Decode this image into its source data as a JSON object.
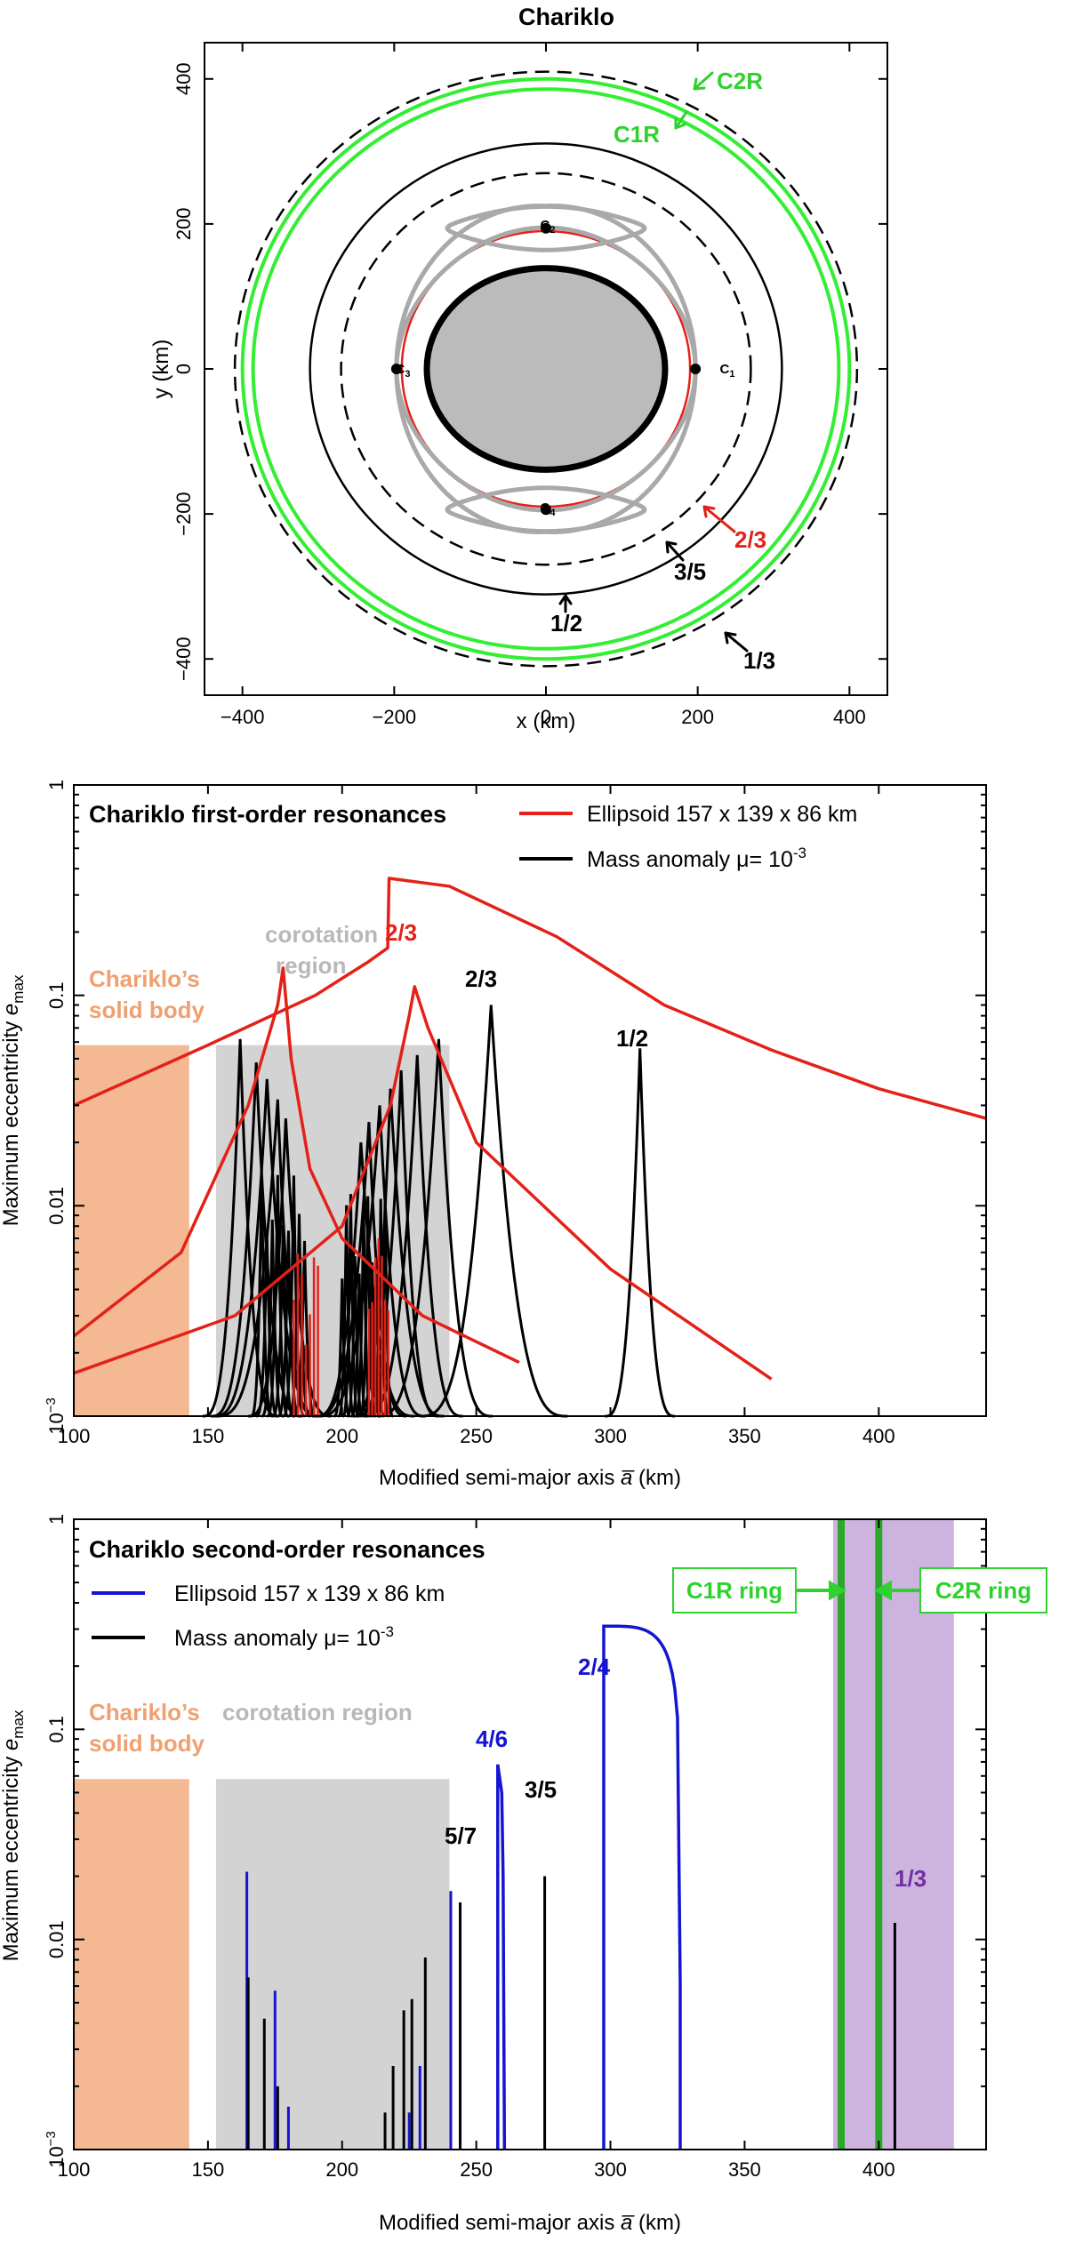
{
  "chart_data": [
    {
      "type": "scatter",
      "title": "Chariklo",
      "xlabel": "x (km)",
      "ylabel": "y (km)",
      "xlim": [
        -450,
        450
      ],
      "ylim": [
        -450,
        450
      ],
      "xticks": [
        "−400",
        "−200",
        "0",
        "200",
        "400"
      ],
      "yticks": [
        "−400",
        "−200",
        "0",
        "200",
        "400"
      ],
      "body": {
        "semi_axis_x": 157,
        "semi_axis_y": 139
      },
      "equilibrium_points": [
        {
          "name": "C1",
          "x": 197,
          "y": 0
        },
        {
          "name": "C2",
          "x": 0,
          "y": 194
        },
        {
          "name": "C3",
          "x": -197,
          "y": 0
        },
        {
          "name": "C4",
          "x": 0,
          "y": -194
        }
      ],
      "circles": [
        {
          "name": "corotation",
          "r": 190,
          "style": "red"
        },
        {
          "name": "3/5",
          "r": 270,
          "style": "dashed"
        },
        {
          "name": "1/2",
          "r": 311,
          "style": "solid"
        },
        {
          "name": "C1R",
          "r": 386,
          "style": "green"
        },
        {
          "name": "C2R",
          "r": 400,
          "style": "green"
        },
        {
          "name": "1/3",
          "r": 410,
          "style": "dashed"
        }
      ],
      "labels": {
        "c2r": "C2R",
        "c1r": "C1R",
        "r23": "2/3",
        "r35": "3/5",
        "r12": "1/2",
        "r13": "1/3"
      }
    },
    {
      "type": "line",
      "title": "Chariklo first-order resonances",
      "xlabel": "Modified semi-major axis a̅ (km)",
      "ylabel": "Maximum eccentricity e_max",
      "xlim": [
        100,
        440
      ],
      "ylim": [
        0.001,
        1
      ],
      "yscale": "log",
      "xticks": [
        100,
        150,
        200,
        250,
        300,
        350,
        400
      ],
      "legend": [
        {
          "label": "Ellipsoid 157 x 139 x 86 km",
          "color": "#e32118"
        },
        {
          "label": "Mass anomaly μ= 10⁻³",
          "color": "#000000"
        }
      ],
      "regions": [
        {
          "label": "Chariklo's solid body",
          "x": [
            100,
            143
          ],
          "top": 0.058,
          "color": "#f4b893"
        },
        {
          "label": "corotation region",
          "x": [
            153,
            240
          ],
          "top": 0.058,
          "color": "#d3d3d3"
        }
      ],
      "peak_labels": [
        {
          "text": "2/3",
          "a": 220,
          "e": 0.36,
          "color": "#e32118"
        },
        {
          "text": "2/3",
          "a": 256,
          "e": 0.09,
          "color": "#000000"
        },
        {
          "text": "1/2",
          "a": 311,
          "e": 0.056,
          "color": "#000000"
        }
      ],
      "series": [
        {
          "name": "Ellipsoid 2/3",
          "color": "#e32118",
          "a": [
            100,
            150,
            190,
            210,
            217,
            217.5,
            240,
            280,
            320,
            360,
            400,
            440
          ],
          "e": [
            0.03,
            0.058,
            0.1,
            0.145,
            0.168,
            0.36,
            0.33,
            0.19,
            0.09,
            0.055,
            0.036,
            0.026
          ]
        },
        {
          "name": "Ellipsoid 3/4",
          "color": "#e32118",
          "a": [
            100,
            140,
            165,
            176,
            178,
            181,
            188,
            200,
            230,
            266
          ],
          "e": [
            0.0024,
            0.006,
            0.03,
            0.09,
            0.135,
            0.05,
            0.015,
            0.007,
            0.003,
            0.0018
          ]
        },
        {
          "name": "Ellipsoid 4/3",
          "color": "#e32118",
          "a": [
            100,
            160,
            200,
            218,
            225,
            227,
            232,
            250,
            300,
            360
          ],
          "e": [
            0.0016,
            0.003,
            0.008,
            0.03,
            0.08,
            0.11,
            0.07,
            0.02,
            0.005,
            0.0015
          ]
        },
        {
          "name": "Mass anomaly 2/3",
          "color": "#000000",
          "peak_a": 255.5,
          "peak_e": 0.09,
          "range": [
            229,
            284
          ]
        },
        {
          "name": "Mass anomaly 1/2",
          "color": "#000000",
          "peak_a": 311,
          "peak_e": 0.056,
          "range": [
            298,
            324
          ]
        }
      ]
    },
    {
      "type": "bar",
      "title": "Chariklo second-order resonances",
      "xlabel": "Modified semi-major axis a̅ (km)",
      "ylabel": "Maximum eccentricity e_max",
      "xlim": [
        100,
        440
      ],
      "ylim": [
        0.001,
        1
      ],
      "yscale": "log",
      "xticks": [
        100,
        150,
        200,
        250,
        300,
        350,
        400
      ],
      "legend": [
        {
          "label": "Ellipsoid 157 x 139 x 86 km",
          "color": "#1414d2"
        },
        {
          "label": "Mass anomaly μ= 10⁻³",
          "color": "#000000"
        }
      ],
      "regions": [
        {
          "label": "Chariklo's solid body",
          "x": [
            100,
            143
          ],
          "top": 0.058,
          "color": "#f4b893"
        },
        {
          "label": "corotation region",
          "x": [
            153,
            240
          ],
          "top": 0.058,
          "color": "#d3d3d3"
        },
        {
          "label": "",
          "x": [
            383,
            428
          ],
          "top": 1,
          "color": "#cdb4de"
        }
      ],
      "rings": [
        {
          "label": "C1R ring",
          "a": 386
        },
        {
          "label": "C2R ring",
          "a": 400
        }
      ],
      "peak_labels": [
        {
          "text": "2/4",
          "a": 309,
          "e": 0.31,
          "color": "#1414d2"
        },
        {
          "text": "4/6",
          "a": 257,
          "e": 0.068,
          "color": "#1414d2"
        },
        {
          "text": "3/5",
          "a": 275,
          "e": 0.027,
          "color": "#000000"
        },
        {
          "text": "5/7",
          "a": 241,
          "e": 0.017,
          "color": "#000000"
        },
        {
          "text": "1/3",
          "a": 407,
          "e": 0.012,
          "color": "#7030a0"
        }
      ],
      "series": [
        {
          "name": "Ellipsoid (blue spikes)",
          "color": "#1414d2",
          "a": [
            164.5,
            175,
            180,
            225,
            229,
            240.5
          ],
          "e": [
            0.021,
            0.0057,
            0.0016,
            0.0015,
            0.0025,
            0.017
          ]
        },
        {
          "name": "Mass anomaly (black spikes)",
          "color": "#000000",
          "a": [
            165,
            171,
            176,
            216,
            219,
            223,
            226,
            231,
            244,
            275.5,
            406
          ],
          "e": [
            0.0066,
            0.0042,
            0.002,
            0.0015,
            0.0025,
            0.0046,
            0.0052,
            0.0082,
            0.015,
            0.02,
            0.012
          ]
        }
      ]
    }
  ]
}
